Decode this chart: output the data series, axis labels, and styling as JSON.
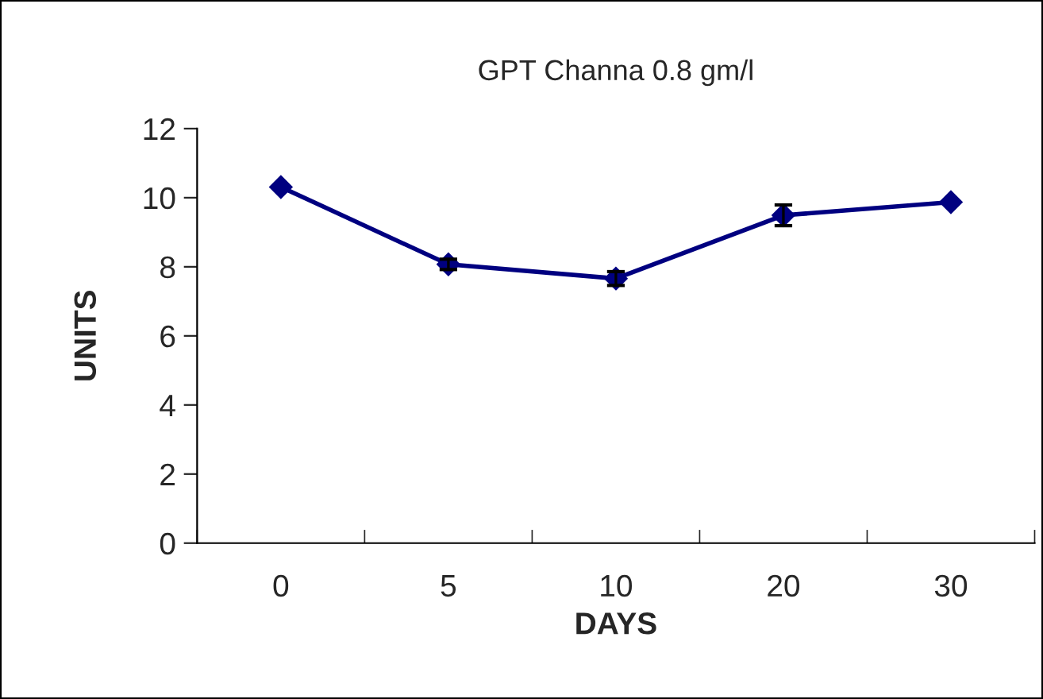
{
  "chart_data": {
    "type": "line",
    "title": "GPT Channa 0.8 gm/l",
    "xlabel": "DAYS",
    "ylabel": "UNITS",
    "categories": [
      "0",
      "5",
      "10",
      "20",
      "30"
    ],
    "series": [
      {
        "color": "#000080",
        "values": [
          10.31,
          8.07,
          7.66,
          9.49,
          9.87
        ],
        "errors": [
          null,
          0.15,
          0.2,
          0.3,
          null
        ]
      }
    ],
    "ylim": [
      0,
      12
    ],
    "yticks": [
      0,
      2,
      4,
      6,
      8,
      10,
      12
    ],
    "grid": false,
    "legend": false,
    "marker": "diamond",
    "line_style": "solid"
  }
}
